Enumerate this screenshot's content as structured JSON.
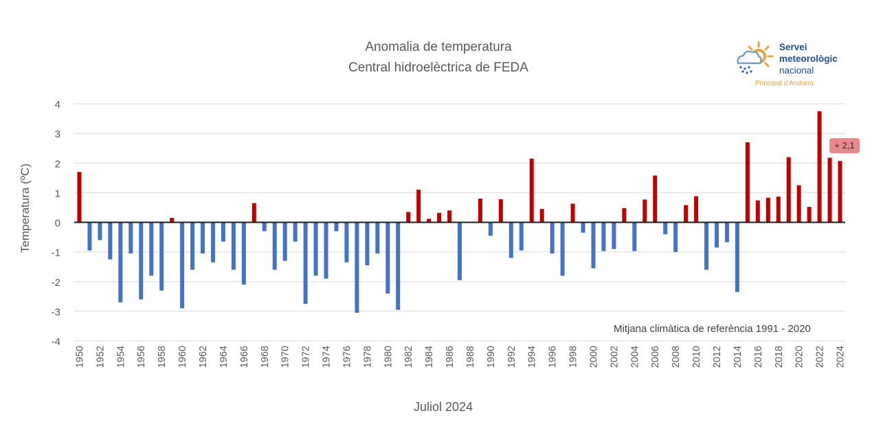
{
  "chart_data": {
    "type": "bar",
    "title": "Anomalia de temperatura",
    "subtitle": "Central hidroelèctrica de FEDA",
    "ylabel": "Temperatura (ºC)",
    "xlabel": "Juliol 2024",
    "ylim": [
      -4,
      4
    ],
    "yticks": [
      4,
      3,
      2,
      1,
      0,
      -1,
      -2,
      -3,
      -4
    ],
    "grid": true,
    "annotation": "Mitjana climàtica de referència 1991 - 2020",
    "callout": "+ 2,1",
    "colors": {
      "positive": "#c00000",
      "negative": "#4472c4",
      "gridline": "#d9d9d9",
      "zero_line": "#1a1a1a"
    },
    "categories": [
      1950,
      1951,
      1952,
      1953,
      1954,
      1955,
      1956,
      1957,
      1958,
      1959,
      1960,
      1961,
      1962,
      1963,
      1964,
      1965,
      1966,
      1967,
      1968,
      1969,
      1970,
      1971,
      1972,
      1973,
      1974,
      1975,
      1976,
      1977,
      1978,
      1979,
      1980,
      1981,
      1982,
      1983,
      1984,
      1985,
      1986,
      1987,
      1988,
      1989,
      1990,
      1991,
      1992,
      1993,
      1994,
      1995,
      1996,
      1997,
      1998,
      1999,
      2000,
      2001,
      2002,
      2003,
      2004,
      2005,
      2006,
      2007,
      2008,
      2009,
      2010,
      2011,
      2012,
      2013,
      2014,
      2015,
      2016,
      2017,
      2018,
      2019,
      2020,
      2021,
      2022,
      2023,
      2024
    ],
    "xtick_labels": [
      "1950",
      "1952",
      "1954",
      "1956",
      "1958",
      "1960",
      "1962",
      "1964",
      "1966",
      "1968",
      "1970",
      "1972",
      "1974",
      "1976",
      "1978",
      "1980",
      "1982",
      "1984",
      "1986",
      "1988",
      "1990",
      "1992",
      "1994",
      "1996",
      "1998",
      "2000",
      "2002",
      "2004",
      "2006",
      "2008",
      "2010",
      "2012",
      "2014",
      "2016",
      "2018",
      "2020",
      "2022",
      "2024"
    ],
    "values": [
      1.7,
      -0.95,
      -0.6,
      -1.25,
      -2.7,
      -1.05,
      -2.6,
      -1.8,
      -2.3,
      0.15,
      -2.9,
      -1.6,
      -1.05,
      -1.35,
      -0.65,
      -1.6,
      -2.1,
      0.65,
      -0.3,
      -1.6,
      -1.3,
      -0.65,
      -2.75,
      -1.8,
      -1.9,
      -0.3,
      -1.35,
      -3.05,
      -1.45,
      -1.05,
      -2.4,
      -2.95,
      0.35,
      1.1,
      0.12,
      0.32,
      0.4,
      -1.95,
      0.0,
      0.8,
      -0.45,
      0.78,
      -1.2,
      -0.95,
      2.15,
      0.45,
      -1.05,
      -1.8,
      0.63,
      -0.35,
      -1.55,
      -0.97,
      -0.9,
      0.48,
      -0.97,
      0.77,
      1.58,
      -0.4,
      -1.0,
      0.58,
      0.88,
      -1.6,
      -0.85,
      -0.67,
      -2.35,
      2.7,
      0.74,
      0.83,
      0.87,
      2.2,
      1.25,
      0.52,
      3.75,
      2.18,
      2.07
    ]
  },
  "logo": {
    "line1": "Servei",
    "line2": "meteorològic",
    "line3": "nacional",
    "sub": "Principat d'Andorra"
  }
}
